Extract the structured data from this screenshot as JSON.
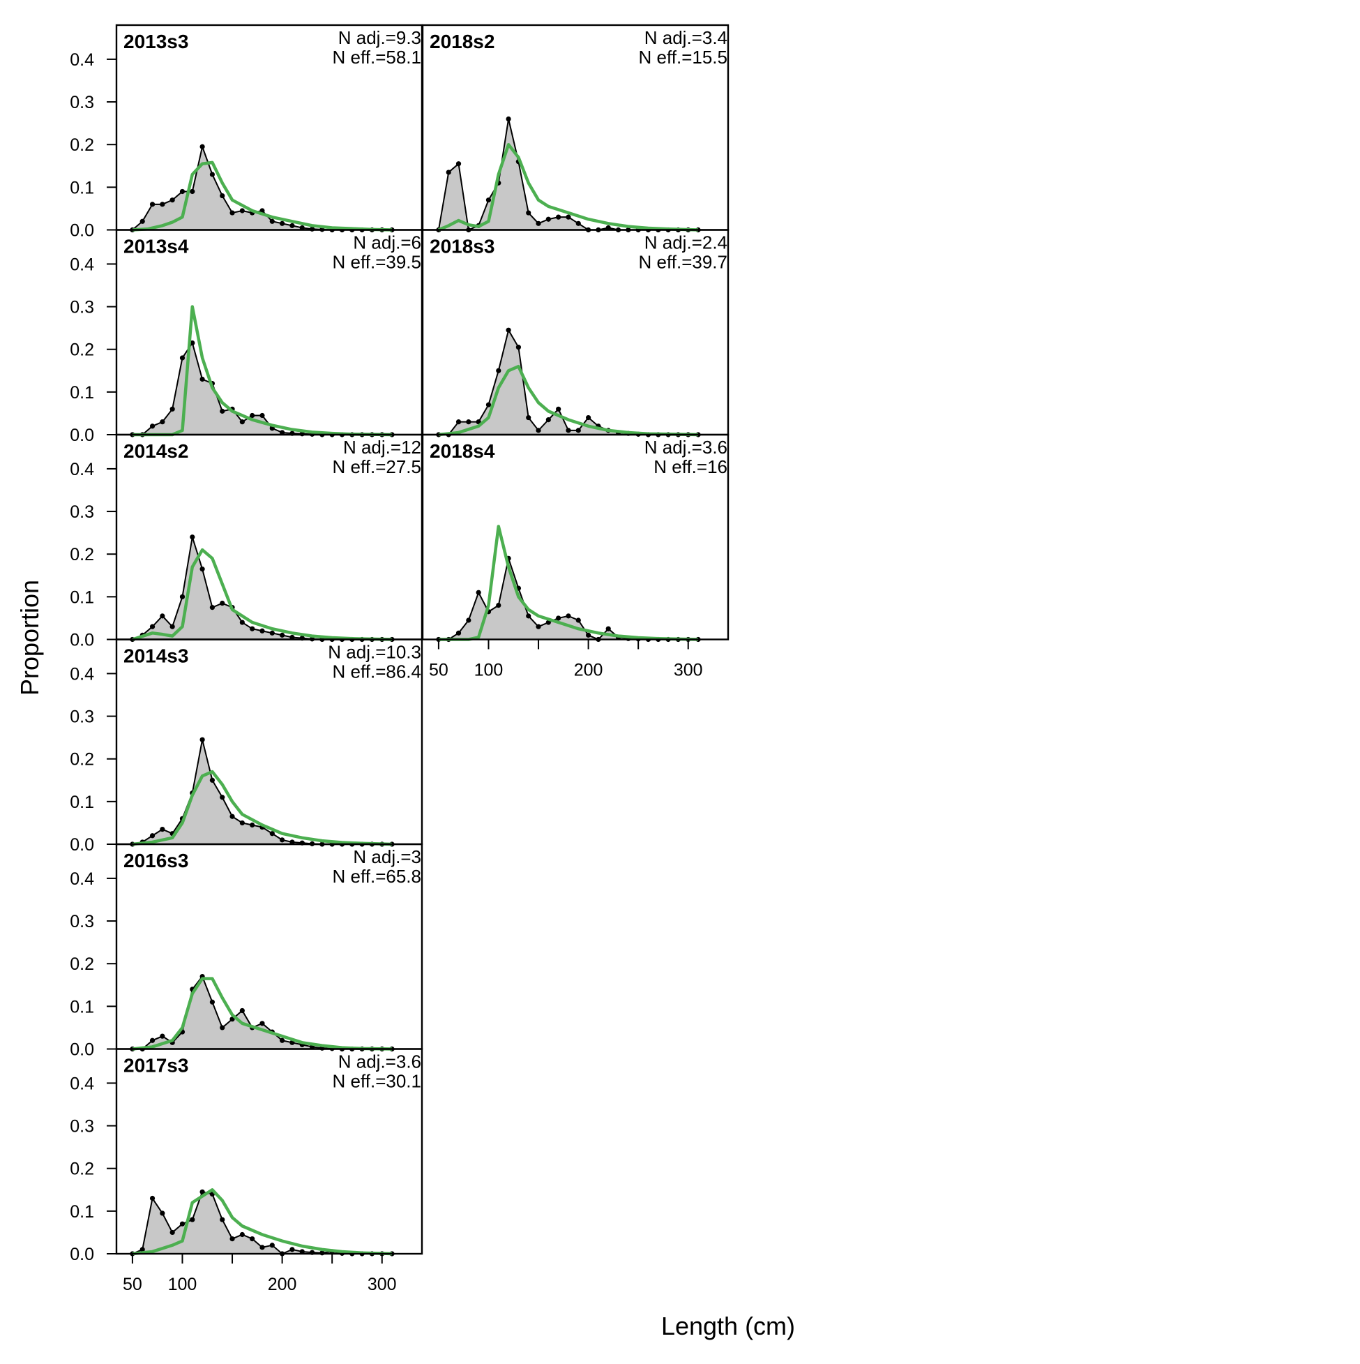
{
  "labels": {
    "ylabel": "Proportion",
    "xlabel": "Length (cm)"
  },
  "chart_data": {
    "type": "area",
    "ylabel": "Proportion",
    "xlabel": "Length (cm)",
    "xlim": [
      34,
      340
    ],
    "ylim": [
      0,
      0.48
    ],
    "xticks": [
      50,
      100,
      200,
      300
    ],
    "xtick_labels": [
      "50",
      "100",
      "200",
      "300"
    ],
    "yticks": [
      0,
      0.1,
      0.2,
      0.3,
      0.4
    ],
    "ytick_labels": [
      "0.0",
      "0.1",
      "0.2",
      "0.3",
      "0.4"
    ],
    "series_style": {
      "observed_fill": "#c8c8c8",
      "observed_line": "#000000",
      "expected_line": "#4caf50"
    },
    "panels": [
      {
        "label": "2013s3",
        "nadj": "N adj.=9.3",
        "neff": "N eff.=58.1",
        "x": [
          50,
          60,
          70,
          80,
          90,
          100,
          110,
          120,
          130,
          140,
          150,
          160,
          170,
          180,
          190,
          200,
          210,
          220,
          230,
          240,
          250,
          260,
          270,
          280,
          290,
          300,
          310
        ],
        "obs": [
          0,
          0.02,
          0.06,
          0.06,
          0.07,
          0.09,
          0.09,
          0.195,
          0.13,
          0.08,
          0.04,
          0.045,
          0.04,
          0.045,
          0.02,
          0.015,
          0.01,
          0.005,
          0.002,
          0.001,
          0,
          0,
          0,
          0,
          0,
          0,
          0
        ],
        "exp": [
          [
            50,
            0
          ],
          [
            65,
            0.002
          ],
          [
            80,
            0.01
          ],
          [
            90,
            0.018
          ],
          [
            100,
            0.03
          ],
          [
            110,
            0.13
          ],
          [
            120,
            0.155
          ],
          [
            130,
            0.158
          ],
          [
            140,
            0.11
          ],
          [
            150,
            0.07
          ],
          [
            170,
            0.045
          ],
          [
            190,
            0.03
          ],
          [
            210,
            0.02
          ],
          [
            230,
            0.01
          ],
          [
            250,
            0.005
          ],
          [
            270,
            0.003
          ],
          [
            290,
            0.001
          ],
          [
            310,
            0
          ]
        ]
      },
      {
        "label": "2013s4",
        "nadj": "N adj.=6",
        "neff": "N eff.=39.5",
        "x": [
          50,
          60,
          70,
          80,
          90,
          100,
          110,
          120,
          130,
          140,
          150,
          160,
          170,
          180,
          190,
          200,
          210,
          220,
          230,
          240,
          250,
          260,
          270,
          280,
          290,
          300,
          310
        ],
        "obs": [
          0,
          0,
          0.02,
          0.03,
          0.06,
          0.18,
          0.215,
          0.13,
          0.12,
          0.055,
          0.06,
          0.03,
          0.045,
          0.045,
          0.015,
          0.005,
          0.003,
          0.002,
          0.001,
          0,
          0,
          0,
          0,
          0,
          0,
          0,
          0
        ],
        "exp": [
          [
            50,
            0
          ],
          [
            90,
            0
          ],
          [
            100,
            0.01
          ],
          [
            110,
            0.3
          ],
          [
            120,
            0.18
          ],
          [
            130,
            0.11
          ],
          [
            140,
            0.075
          ],
          [
            150,
            0.055
          ],
          [
            170,
            0.035
          ],
          [
            190,
            0.022
          ],
          [
            210,
            0.012
          ],
          [
            230,
            0.006
          ],
          [
            250,
            0.003
          ],
          [
            270,
            0.001
          ],
          [
            310,
            0
          ]
        ]
      },
      {
        "label": "2014s2",
        "nadj": "N adj.=12",
        "neff": "N eff.=27.5",
        "x": [
          50,
          60,
          70,
          80,
          90,
          100,
          110,
          120,
          130,
          140,
          150,
          160,
          170,
          180,
          190,
          200,
          210,
          220,
          230,
          240,
          250,
          260,
          270,
          280,
          290,
          300,
          310
        ],
        "obs": [
          0,
          0.01,
          0.03,
          0.055,
          0.03,
          0.1,
          0.24,
          0.165,
          0.075,
          0.085,
          0.075,
          0.04,
          0.025,
          0.02,
          0.015,
          0.01,
          0.005,
          0.003,
          0.001,
          0,
          0,
          0,
          0,
          0,
          0,
          0,
          0
        ],
        "exp": [
          [
            50,
            0
          ],
          [
            70,
            0.015
          ],
          [
            80,
            0.012
          ],
          [
            90,
            0.008
          ],
          [
            100,
            0.03
          ],
          [
            110,
            0.17
          ],
          [
            120,
            0.21
          ],
          [
            130,
            0.19
          ],
          [
            140,
            0.13
          ],
          [
            150,
            0.07
          ],
          [
            170,
            0.04
          ],
          [
            190,
            0.025
          ],
          [
            210,
            0.015
          ],
          [
            230,
            0.008
          ],
          [
            250,
            0.004
          ],
          [
            270,
            0.002
          ],
          [
            310,
            0
          ]
        ]
      },
      {
        "label": "2014s3",
        "nadj": "N adj.=10.3",
        "neff": "N eff.=86.4",
        "x": [
          50,
          60,
          70,
          80,
          90,
          100,
          110,
          120,
          130,
          140,
          150,
          160,
          170,
          180,
          190,
          200,
          210,
          220,
          230,
          240,
          250,
          260,
          270,
          280,
          290,
          300,
          310
        ],
        "obs": [
          0,
          0.005,
          0.02,
          0.035,
          0.025,
          0.06,
          0.12,
          0.245,
          0.15,
          0.11,
          0.065,
          0.05,
          0.045,
          0.04,
          0.025,
          0.01,
          0.005,
          0.003,
          0.001,
          0,
          0,
          0,
          0,
          0,
          0,
          0,
          0
        ],
        "exp": [
          [
            50,
            0
          ],
          [
            70,
            0.005
          ],
          [
            90,
            0.015
          ],
          [
            100,
            0.05
          ],
          [
            110,
            0.115
          ],
          [
            120,
            0.16
          ],
          [
            130,
            0.17
          ],
          [
            140,
            0.14
          ],
          [
            150,
            0.1
          ],
          [
            160,
            0.07
          ],
          [
            180,
            0.045
          ],
          [
            200,
            0.025
          ],
          [
            220,
            0.015
          ],
          [
            240,
            0.008
          ],
          [
            260,
            0.004
          ],
          [
            280,
            0.002
          ],
          [
            310,
            0
          ]
        ]
      },
      {
        "label": "2016s3",
        "nadj": "N adj.=3",
        "neff": "N eff.=65.8",
        "x": [
          50,
          60,
          70,
          80,
          90,
          100,
          110,
          120,
          130,
          140,
          150,
          160,
          170,
          180,
          190,
          200,
          210,
          220,
          230,
          240,
          250,
          260,
          270,
          280,
          290,
          300,
          310
        ],
        "obs": [
          0,
          0,
          0.02,
          0.03,
          0.015,
          0.04,
          0.14,
          0.17,
          0.11,
          0.05,
          0.07,
          0.09,
          0.05,
          0.06,
          0.04,
          0.02,
          0.015,
          0.01,
          0.005,
          0.002,
          0.001,
          0,
          0,
          0,
          0,
          0,
          0
        ],
        "exp": [
          [
            50,
            0
          ],
          [
            70,
            0.005
          ],
          [
            90,
            0.02
          ],
          [
            100,
            0.05
          ],
          [
            110,
            0.13
          ],
          [
            120,
            0.165
          ],
          [
            130,
            0.165
          ],
          [
            140,
            0.12
          ],
          [
            150,
            0.08
          ],
          [
            160,
            0.06
          ],
          [
            180,
            0.045
          ],
          [
            200,
            0.03
          ],
          [
            220,
            0.015
          ],
          [
            240,
            0.008
          ],
          [
            260,
            0.003
          ],
          [
            280,
            0.001
          ],
          [
            310,
            0
          ]
        ]
      },
      {
        "label": "2017s3",
        "nadj": "N adj.=3.6",
        "neff": "N eff.=30.1",
        "x": [
          50,
          60,
          70,
          80,
          90,
          100,
          110,
          120,
          130,
          140,
          150,
          160,
          170,
          180,
          190,
          200,
          210,
          220,
          230,
          240,
          250,
          260,
          270,
          280,
          290,
          300,
          310
        ],
        "obs": [
          0,
          0.01,
          0.13,
          0.095,
          0.05,
          0.07,
          0.08,
          0.145,
          0.14,
          0.08,
          0.035,
          0.045,
          0.035,
          0.015,
          0.02,
          0,
          0.01,
          0.005,
          0.003,
          0.002,
          0.005,
          0.001,
          0,
          0,
          0,
          0,
          0
        ],
        "exp": [
          [
            50,
            0
          ],
          [
            70,
            0.005
          ],
          [
            90,
            0.02
          ],
          [
            100,
            0.03
          ],
          [
            110,
            0.12
          ],
          [
            120,
            0.135
          ],
          [
            130,
            0.15
          ],
          [
            140,
            0.125
          ],
          [
            150,
            0.085
          ],
          [
            160,
            0.065
          ],
          [
            180,
            0.045
          ],
          [
            200,
            0.03
          ],
          [
            220,
            0.018
          ],
          [
            240,
            0.01
          ],
          [
            260,
            0.005
          ],
          [
            280,
            0.002
          ],
          [
            310,
            0
          ]
        ]
      },
      {
        "label": "2018s2",
        "nadj": "N adj.=3.4",
        "neff": "N eff.=15.5",
        "x": [
          50,
          60,
          70,
          80,
          90,
          100,
          110,
          120,
          130,
          140,
          150,
          160,
          170,
          180,
          190,
          200,
          210,
          220,
          230,
          240,
          250,
          260,
          270,
          280,
          290,
          300,
          310
        ],
        "obs": [
          0,
          0.135,
          0.155,
          0,
          0.01,
          0.07,
          0.11,
          0.26,
          0.16,
          0.04,
          0.015,
          0.025,
          0.03,
          0.03,
          0.015,
          0,
          0,
          0.005,
          0,
          0,
          0,
          0,
          0,
          0,
          0,
          0,
          0
        ],
        "exp": [
          [
            50,
            0
          ],
          [
            60,
            0.01
          ],
          [
            70,
            0.022
          ],
          [
            80,
            0.012
          ],
          [
            90,
            0.008
          ],
          [
            100,
            0.02
          ],
          [
            110,
            0.13
          ],
          [
            120,
            0.2
          ],
          [
            130,
            0.17
          ],
          [
            140,
            0.11
          ],
          [
            150,
            0.07
          ],
          [
            160,
            0.055
          ],
          [
            180,
            0.04
          ],
          [
            200,
            0.025
          ],
          [
            220,
            0.015
          ],
          [
            240,
            0.008
          ],
          [
            260,
            0.004
          ],
          [
            280,
            0.002
          ],
          [
            310,
            0
          ]
        ]
      },
      {
        "label": "2018s3",
        "nadj": "N adj.=2.4",
        "neff": "N eff.=39.7",
        "x": [
          50,
          60,
          70,
          80,
          90,
          100,
          110,
          120,
          130,
          140,
          150,
          160,
          170,
          180,
          190,
          200,
          210,
          220,
          230,
          240,
          250,
          260,
          270,
          280,
          290,
          300,
          310
        ],
        "obs": [
          0,
          0,
          0.03,
          0.03,
          0.03,
          0.07,
          0.15,
          0.245,
          0.205,
          0.04,
          0.01,
          0.035,
          0.06,
          0.01,
          0.01,
          0.04,
          0.02,
          0.01,
          0.005,
          0.003,
          0.001,
          0,
          0,
          0,
          0,
          0,
          0
        ],
        "exp": [
          [
            50,
            0
          ],
          [
            70,
            0.005
          ],
          [
            90,
            0.02
          ],
          [
            100,
            0.04
          ],
          [
            110,
            0.11
          ],
          [
            120,
            0.15
          ],
          [
            130,
            0.16
          ],
          [
            140,
            0.11
          ],
          [
            150,
            0.075
          ],
          [
            160,
            0.055
          ],
          [
            180,
            0.035
          ],
          [
            200,
            0.02
          ],
          [
            220,
            0.01
          ],
          [
            240,
            0.005
          ],
          [
            260,
            0.002
          ],
          [
            310,
            0
          ]
        ]
      },
      {
        "label": "2018s4",
        "nadj": "N adj.=3.6",
        "neff": "N eff.=16",
        "x": [
          50,
          60,
          70,
          80,
          90,
          100,
          110,
          120,
          130,
          140,
          150,
          160,
          170,
          180,
          190,
          200,
          210,
          220,
          230,
          240,
          250,
          260,
          270,
          280,
          290,
          300,
          310
        ],
        "obs": [
          0,
          0,
          0.015,
          0.045,
          0.11,
          0.065,
          0.08,
          0.19,
          0.12,
          0.055,
          0.03,
          0.04,
          0.05,
          0.055,
          0.045,
          0.01,
          0,
          0.025,
          0.005,
          0.002,
          0.001,
          0,
          0,
          0,
          0,
          0,
          0
        ],
        "exp": [
          [
            50,
            0
          ],
          [
            80,
            0
          ],
          [
            90,
            0.005
          ],
          [
            100,
            0.08
          ],
          [
            110,
            0.265
          ],
          [
            120,
            0.17
          ],
          [
            130,
            0.1
          ],
          [
            140,
            0.07
          ],
          [
            150,
            0.055
          ],
          [
            170,
            0.04
          ],
          [
            190,
            0.025
          ],
          [
            210,
            0.015
          ],
          [
            230,
            0.008
          ],
          [
            250,
            0.004
          ],
          [
            270,
            0.002
          ],
          [
            310,
            0
          ]
        ]
      }
    ]
  }
}
